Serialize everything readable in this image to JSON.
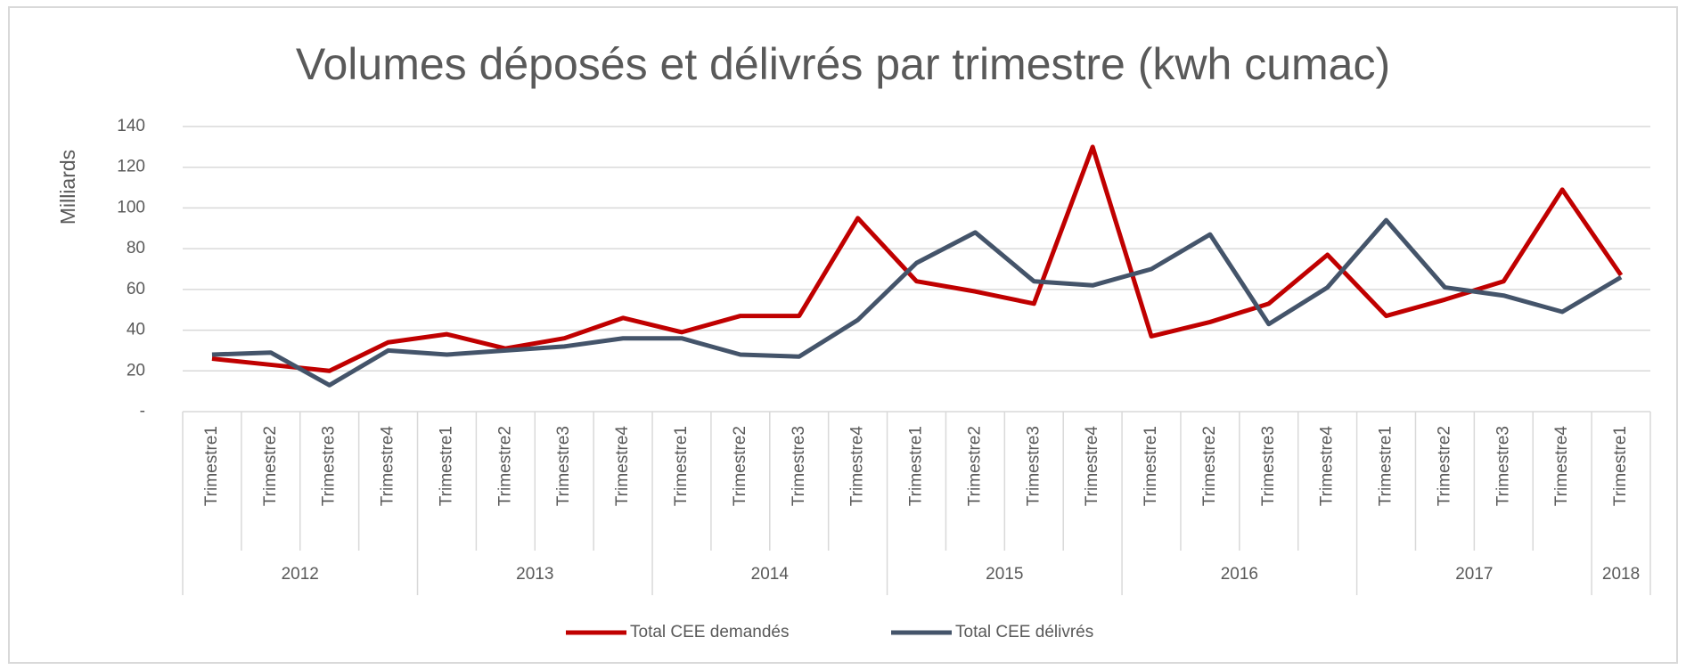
{
  "chart_data": {
    "type": "line",
    "title": "Volumes déposés et délivrés par trimestre (kwh cumac)",
    "ylabel": "Milliards",
    "categories": [
      "Trimestre1",
      "Trimestre2",
      "Trimestre3",
      "Trimestre4",
      "Trimestre1",
      "Trimestre2",
      "Trimestre3",
      "Trimestre4",
      "Trimestre1",
      "Trimestre2",
      "Trimestre3",
      "Trimestre4",
      "Trimestre1",
      "Trimestre2",
      "Trimestre3",
      "Trimestre4",
      "Trimestre1",
      "Trimestre2",
      "Trimestre3",
      "Trimestre4",
      "Trimestre1",
      "Trimestre2",
      "Trimestre3",
      "Trimestre4",
      "Trimestre1"
    ],
    "groups": [
      {
        "label": "2012",
        "count": 4
      },
      {
        "label": "2013",
        "count": 4
      },
      {
        "label": "2014",
        "count": 4
      },
      {
        "label": "2015",
        "count": 4
      },
      {
        "label": "2016",
        "count": 4
      },
      {
        "label": "2017",
        "count": 4
      },
      {
        "label": "2018",
        "count": 1
      }
    ],
    "series": [
      {
        "name": "Total CEE demandés",
        "color": "#c00000",
        "values": [
          26,
          23,
          20,
          34,
          38,
          31,
          36,
          46,
          39,
          47,
          47,
          95,
          64,
          59,
          53,
          130,
          37,
          44,
          53,
          77,
          47,
          55,
          64,
          109,
          67
        ]
      },
      {
        "name": "Total CEE délivrés",
        "color": "#44546a",
        "values": [
          28,
          29,
          13,
          30,
          28,
          30,
          32,
          36,
          36,
          28,
          27,
          45,
          73,
          88,
          64,
          62,
          70,
          87,
          43,
          61,
          94,
          61,
          57,
          49,
          66
        ]
      }
    ],
    "ylim": [
      0,
      140
    ],
    "yticks": [
      {
        "value": 0,
        "label": "-"
      },
      20,
      40,
      60,
      80,
      100,
      120,
      140
    ],
    "grid": true,
    "legend": "bottom"
  }
}
